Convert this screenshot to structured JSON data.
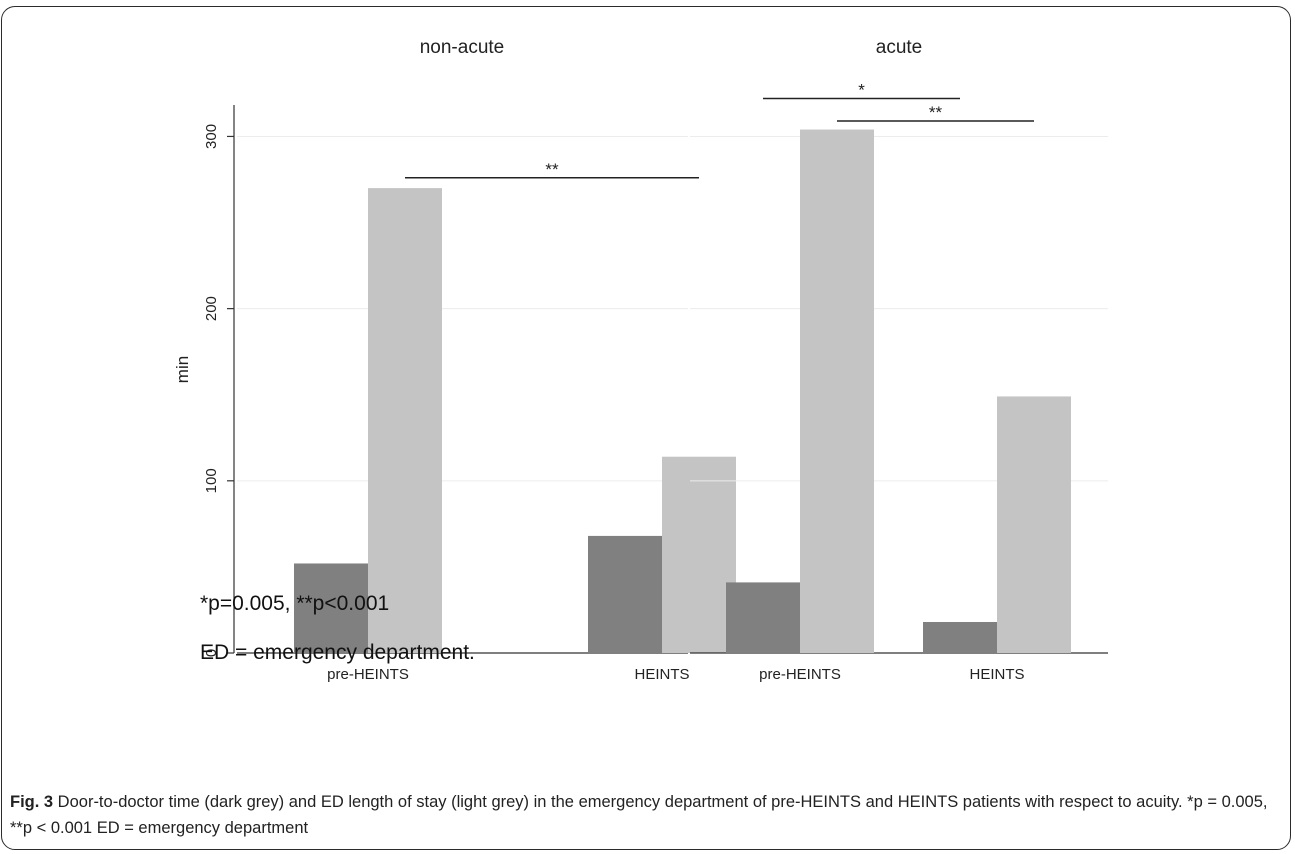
{
  "chart_data": {
    "type": "bar",
    "ylabel": "min",
    "ylim": [
      0,
      320
    ],
    "yticks": [
      0,
      100,
      200,
      300
    ],
    "categories": [
      "pre-HEINTS",
      "HEINTS"
    ],
    "colors": {
      "door_to_doctor": "#808080",
      "length_of_stay": "#c4c4c4"
    },
    "panels": [
      {
        "title": "non-acute",
        "series": [
          {
            "values": [
              52,
              68
            ]
          },
          {
            "values": [
              270,
              114
            ]
          }
        ],
        "significance": [
          {
            "label": "**",
            "from": [
              0,
              1
            ],
            "to": [
              1,
              1
            ],
            "y": 276
          }
        ]
      },
      {
        "title": "acute",
        "series": [
          {
            "values": [
              41,
              18
            ]
          },
          {
            "values": [
              304,
              149
            ]
          }
        ],
        "significance": [
          {
            "label": "*",
            "from": [
              0,
              0
            ],
            "to": [
              1,
              0
            ],
            "y": 322
          },
          {
            "label": "**",
            "from": [
              0,
              1
            ],
            "to": [
              1,
              1
            ],
            "y": 309
          }
        ]
      }
    ]
  },
  "notes": {
    "pvalues": "*p=0.005, **p<0.001",
    "abbreviation": "ED = emergency department."
  },
  "caption": {
    "label": "Fig. 3",
    "text": " Door-to-doctor time (dark grey) and ED length of stay (light grey) in the emergency department of pre-HEINTS and HEINTS patients with respect to acuity. *p = 0.005, **p < 0.001 ED = emergency department"
  }
}
